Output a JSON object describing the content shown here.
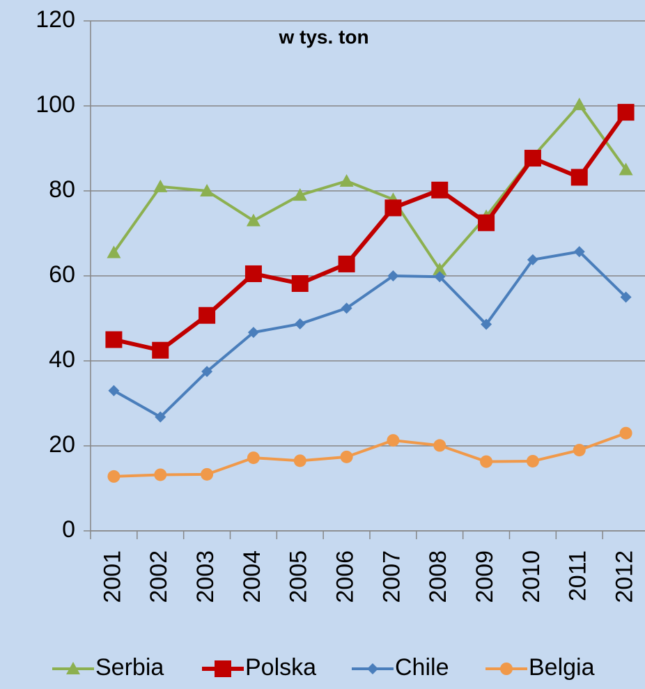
{
  "chart_data": {
    "type": "line",
    "title": "w tys. ton",
    "categories": [
      "2001",
      "2002",
      "2003",
      "2004",
      "2005",
      "2006",
      "2007",
      "2008",
      "2009",
      "2010",
      "2011",
      "2012"
    ],
    "series": [
      {
        "name": "Serbia",
        "color": "#8cb050",
        "marker": "triangle",
        "values": [
          65.5,
          81,
          80,
          73,
          79,
          82.3,
          78,
          61.5,
          74,
          88,
          100.3,
          85
        ]
      },
      {
        "name": "Polska",
        "color": "#c00000",
        "marker": "square",
        "values": [
          45,
          42.5,
          50.7,
          60.5,
          58.2,
          62.8,
          76,
          80.2,
          72.5,
          87.7,
          83.2,
          98.5
        ]
      },
      {
        "name": "Chile",
        "color": "#4a7ebb",
        "marker": "diamond",
        "values": [
          33,
          26.8,
          37.5,
          46.7,
          48.7,
          52.4,
          60,
          59.8,
          48.6,
          63.8,
          65.7,
          55
        ]
      },
      {
        "name": "Belgia",
        "color": "#f0994a",
        "marker": "circle",
        "values": [
          12.8,
          13.2,
          13.3,
          17.2,
          16.5,
          17.4,
          21.3,
          20.1,
          16.3,
          16.4,
          19,
          23
        ]
      }
    ],
    "ylim": [
      0,
      120
    ],
    "yticks": [
      0,
      20,
      40,
      60,
      80,
      100,
      120
    ],
    "grid": true,
    "legend": "bottom"
  }
}
